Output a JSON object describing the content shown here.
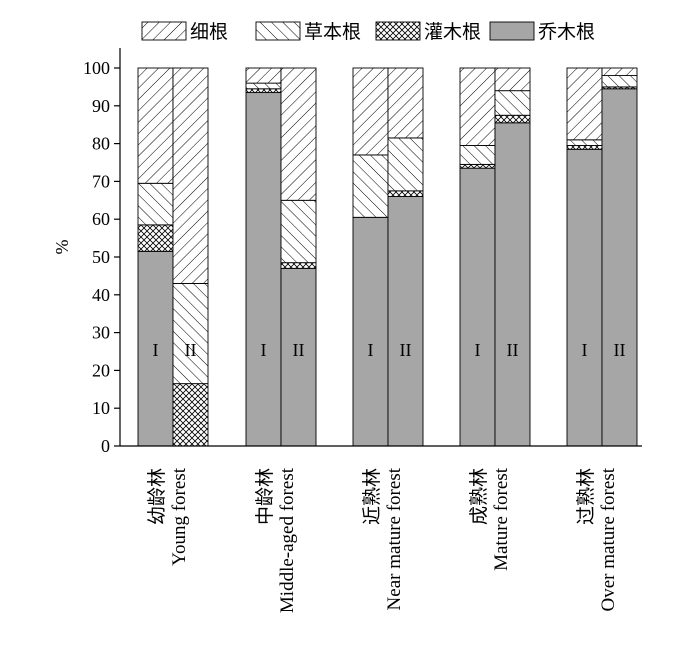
{
  "chart_data": {
    "type": "bar",
    "stacked": true,
    "ylabel": "%",
    "ylim": [
      0,
      100
    ],
    "yticks": [
      0,
      10,
      20,
      30,
      40,
      50,
      60,
      70,
      80,
      90,
      100
    ],
    "grid": false,
    "legend_position": "top",
    "categories": [
      {
        "zh": "幼龄林",
        "en": "Young forest"
      },
      {
        "zh": "中龄林",
        "en": "Middle-aged forest"
      },
      {
        "zh": "近熟林",
        "en": "Near mature forest"
      },
      {
        "zh": "成熟林",
        "en": "Mature forest"
      },
      {
        "zh": "过熟林",
        "en": "Over mature forest"
      }
    ],
    "bar_labels": [
      "I",
      "II"
    ],
    "series": [
      {
        "name": "乔木根",
        "pattern": "solid-gray",
        "color": "#a6a6a6",
        "values": [
          [
            51.5,
            0
          ],
          [
            93.5,
            47
          ],
          [
            60.5,
            66
          ],
          [
            73.5,
            85.5
          ],
          [
            78.5,
            94.5
          ]
        ]
      },
      {
        "name": "灌木根",
        "pattern": "cross-hatch",
        "values": [
          [
            7,
            16.5
          ],
          [
            1,
            1.5
          ],
          [
            0,
            1.5
          ],
          [
            1,
            2
          ],
          [
            1,
            0.5
          ]
        ]
      },
      {
        "name": "草本根",
        "pattern": "back-diagonal",
        "values": [
          [
            11,
            26.5
          ],
          [
            1.5,
            16.5
          ],
          [
            16.5,
            14
          ],
          [
            5,
            6.5
          ],
          [
            1.5,
            3
          ]
        ]
      },
      {
        "name": "细根",
        "pattern": "forward-diagonal",
        "values": [
          [
            30.5,
            57
          ],
          [
            4,
            35
          ],
          [
            23,
            18.5
          ],
          [
            20.5,
            6
          ],
          [
            19,
            2
          ]
        ]
      }
    ],
    "legend_order": [
      "细根",
      "草本根",
      "灌木根",
      "乔木根"
    ]
  }
}
